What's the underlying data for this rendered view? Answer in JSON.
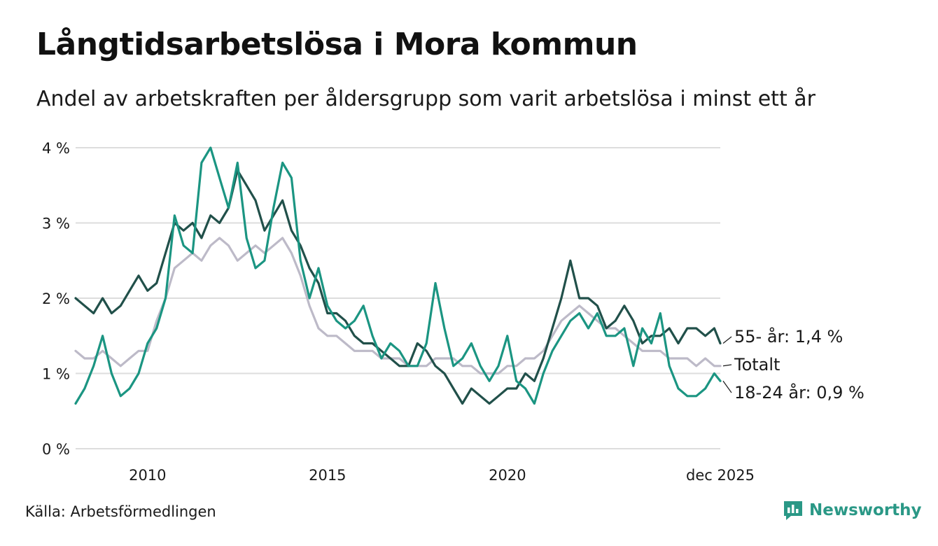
{
  "title": "Långtidsarbetslösa i Mora kommun",
  "subtitle": "Andel av arbetskraften per åldersgrupp som varit arbetslösa i minst ett år",
  "source": "Källa: Arbetsförmedlingen",
  "brand": "Newsworthy",
  "colors": {
    "age55": "#21504a",
    "total": "#bdbac8",
    "age1824": "#1b9582",
    "grid": "#dddddd",
    "brand": "#2a9886"
  },
  "chart_data": {
    "type": "line",
    "title": "Långtidsarbetslösa i Mora kommun",
    "xlabel": "",
    "ylabel": "",
    "ylim": [
      0,
      4
    ],
    "xlim": [
      2008.0,
      2025.917
    ],
    "yticks": [
      0,
      1,
      2,
      3,
      4
    ],
    "ytick_labels": [
      "0 %",
      "1 %",
      "2 %",
      "3 %",
      "4 %"
    ],
    "xticks": [
      2010,
      2015,
      2020,
      2025.917
    ],
    "xtick_labels": [
      "2010",
      "2015",
      "2020",
      "dec 2025"
    ],
    "grid": true,
    "series": [
      {
        "name": "Totalt",
        "end_label": "Totalt",
        "color": "#bdbac8",
        "points": [
          [
            2008.0,
            1.3
          ],
          [
            2008.25,
            1.2
          ],
          [
            2008.5,
            1.2
          ],
          [
            2008.75,
            1.3
          ],
          [
            2009.0,
            1.2
          ],
          [
            2009.25,
            1.1
          ],
          [
            2009.5,
            1.2
          ],
          [
            2009.75,
            1.3
          ],
          [
            2010.0,
            1.3
          ],
          [
            2010.25,
            1.7
          ],
          [
            2010.5,
            2.0
          ],
          [
            2010.75,
            2.4
          ],
          [
            2011.0,
            2.5
          ],
          [
            2011.25,
            2.6
          ],
          [
            2011.5,
            2.5
          ],
          [
            2011.75,
            2.7
          ],
          [
            2012.0,
            2.8
          ],
          [
            2012.25,
            2.7
          ],
          [
            2012.5,
            2.5
          ],
          [
            2012.75,
            2.6
          ],
          [
            2013.0,
            2.7
          ],
          [
            2013.25,
            2.6
          ],
          [
            2013.5,
            2.7
          ],
          [
            2013.75,
            2.8
          ],
          [
            2014.0,
            2.6
          ],
          [
            2014.25,
            2.3
          ],
          [
            2014.5,
            1.9
          ],
          [
            2014.75,
            1.6
          ],
          [
            2015.0,
            1.5
          ],
          [
            2015.25,
            1.5
          ],
          [
            2015.5,
            1.4
          ],
          [
            2015.75,
            1.3
          ],
          [
            2016.0,
            1.3
          ],
          [
            2016.25,
            1.3
          ],
          [
            2016.5,
            1.2
          ],
          [
            2016.75,
            1.2
          ],
          [
            2017.0,
            1.2
          ],
          [
            2017.25,
            1.1
          ],
          [
            2017.5,
            1.1
          ],
          [
            2017.75,
            1.1
          ],
          [
            2018.0,
            1.2
          ],
          [
            2018.25,
            1.2
          ],
          [
            2018.5,
            1.2
          ],
          [
            2018.75,
            1.1
          ],
          [
            2019.0,
            1.1
          ],
          [
            2019.25,
            1.0
          ],
          [
            2019.5,
            1.0
          ],
          [
            2019.75,
            1.0
          ],
          [
            2020.0,
            1.1
          ],
          [
            2020.25,
            1.1
          ],
          [
            2020.5,
            1.2
          ],
          [
            2020.75,
            1.2
          ],
          [
            2021.0,
            1.3
          ],
          [
            2021.25,
            1.5
          ],
          [
            2021.5,
            1.7
          ],
          [
            2021.75,
            1.8
          ],
          [
            2022.0,
            1.9
          ],
          [
            2022.25,
            1.8
          ],
          [
            2022.5,
            1.7
          ],
          [
            2022.75,
            1.6
          ],
          [
            2023.0,
            1.6
          ],
          [
            2023.25,
            1.5
          ],
          [
            2023.5,
            1.4
          ],
          [
            2023.75,
            1.3
          ],
          [
            2024.0,
            1.3
          ],
          [
            2024.25,
            1.3
          ],
          [
            2024.5,
            1.2
          ],
          [
            2024.75,
            1.2
          ],
          [
            2025.0,
            1.2
          ],
          [
            2025.25,
            1.1
          ],
          [
            2025.5,
            1.2
          ],
          [
            2025.75,
            1.1
          ],
          [
            2025.917,
            1.1
          ]
        ]
      },
      {
        "name": "55- år",
        "end_label": "55- år: 1,4 %",
        "color": "#21504a",
        "points": [
          [
            2008.0,
            2.0
          ],
          [
            2008.25,
            1.9
          ],
          [
            2008.5,
            1.8
          ],
          [
            2008.75,
            2.0
          ],
          [
            2009.0,
            1.8
          ],
          [
            2009.25,
            1.9
          ],
          [
            2009.5,
            2.1
          ],
          [
            2009.75,
            2.3
          ],
          [
            2010.0,
            2.1
          ],
          [
            2010.25,
            2.2
          ],
          [
            2010.5,
            2.6
          ],
          [
            2010.75,
            3.0
          ],
          [
            2011.0,
            2.9
          ],
          [
            2011.25,
            3.0
          ],
          [
            2011.5,
            2.8
          ],
          [
            2011.75,
            3.1
          ],
          [
            2012.0,
            3.0
          ],
          [
            2012.25,
            3.2
          ],
          [
            2012.5,
            3.7
          ],
          [
            2012.75,
            3.5
          ],
          [
            2013.0,
            3.3
          ],
          [
            2013.25,
            2.9
          ],
          [
            2013.5,
            3.1
          ],
          [
            2013.75,
            3.3
          ],
          [
            2014.0,
            2.9
          ],
          [
            2014.25,
            2.7
          ],
          [
            2014.5,
            2.4
          ],
          [
            2014.75,
            2.2
          ],
          [
            2015.0,
            1.8
          ],
          [
            2015.25,
            1.8
          ],
          [
            2015.5,
            1.7
          ],
          [
            2015.75,
            1.5
          ],
          [
            2016.0,
            1.4
          ],
          [
            2016.25,
            1.4
          ],
          [
            2016.5,
            1.3
          ],
          [
            2016.75,
            1.2
          ],
          [
            2017.0,
            1.1
          ],
          [
            2017.25,
            1.1
          ],
          [
            2017.5,
            1.4
          ],
          [
            2017.75,
            1.3
          ],
          [
            2018.0,
            1.1
          ],
          [
            2018.25,
            1.0
          ],
          [
            2018.5,
            0.8
          ],
          [
            2018.75,
            0.6
          ],
          [
            2019.0,
            0.8
          ],
          [
            2019.25,
            0.7
          ],
          [
            2019.5,
            0.6
          ],
          [
            2019.75,
            0.7
          ],
          [
            2020.0,
            0.8
          ],
          [
            2020.25,
            0.8
          ],
          [
            2020.5,
            1.0
          ],
          [
            2020.75,
            0.9
          ],
          [
            2021.0,
            1.2
          ],
          [
            2021.25,
            1.6
          ],
          [
            2021.5,
            2.0
          ],
          [
            2021.75,
            2.5
          ],
          [
            2022.0,
            2.0
          ],
          [
            2022.25,
            2.0
          ],
          [
            2022.5,
            1.9
          ],
          [
            2022.75,
            1.6
          ],
          [
            2023.0,
            1.7
          ],
          [
            2023.25,
            1.9
          ],
          [
            2023.5,
            1.7
          ],
          [
            2023.75,
            1.4
          ],
          [
            2024.0,
            1.5
          ],
          [
            2024.25,
            1.5
          ],
          [
            2024.5,
            1.6
          ],
          [
            2024.75,
            1.4
          ],
          [
            2025.0,
            1.6
          ],
          [
            2025.25,
            1.6
          ],
          [
            2025.5,
            1.5
          ],
          [
            2025.75,
            1.6
          ],
          [
            2025.917,
            1.4
          ]
        ]
      },
      {
        "name": "18-24 år",
        "end_label": "18-24 år: 0,9 %",
        "color": "#1b9582",
        "points": [
          [
            2008.0,
            0.6
          ],
          [
            2008.25,
            0.8
          ],
          [
            2008.5,
            1.1
          ],
          [
            2008.75,
            1.5
          ],
          [
            2009.0,
            1.0
          ],
          [
            2009.25,
            0.7
          ],
          [
            2009.5,
            0.8
          ],
          [
            2009.75,
            1.0
          ],
          [
            2010.0,
            1.4
          ],
          [
            2010.25,
            1.6
          ],
          [
            2010.5,
            2.0
          ],
          [
            2010.75,
            3.1
          ],
          [
            2011.0,
            2.7
          ],
          [
            2011.25,
            2.6
          ],
          [
            2011.5,
            3.8
          ],
          [
            2011.75,
            4.0
          ],
          [
            2012.0,
            3.6
          ],
          [
            2012.25,
            3.2
          ],
          [
            2012.5,
            3.8
          ],
          [
            2012.75,
            2.8
          ],
          [
            2013.0,
            2.4
          ],
          [
            2013.25,
            2.5
          ],
          [
            2013.5,
            3.2
          ],
          [
            2013.75,
            3.8
          ],
          [
            2014.0,
            3.6
          ],
          [
            2014.25,
            2.5
          ],
          [
            2014.5,
            2.0
          ],
          [
            2014.75,
            2.4
          ],
          [
            2015.0,
            1.9
          ],
          [
            2015.25,
            1.7
          ],
          [
            2015.5,
            1.6
          ],
          [
            2015.75,
            1.7
          ],
          [
            2016.0,
            1.9
          ],
          [
            2016.25,
            1.5
          ],
          [
            2016.5,
            1.2
          ],
          [
            2016.75,
            1.4
          ],
          [
            2017.0,
            1.3
          ],
          [
            2017.25,
            1.1
          ],
          [
            2017.5,
            1.1
          ],
          [
            2017.75,
            1.4
          ],
          [
            2018.0,
            2.2
          ],
          [
            2018.25,
            1.6
          ],
          [
            2018.5,
            1.1
          ],
          [
            2018.75,
            1.2
          ],
          [
            2019.0,
            1.4
          ],
          [
            2019.25,
            1.1
          ],
          [
            2019.5,
            0.9
          ],
          [
            2019.75,
            1.1
          ],
          [
            2020.0,
            1.5
          ],
          [
            2020.25,
            0.9
          ],
          [
            2020.5,
            0.8
          ],
          [
            2020.75,
            0.6
          ],
          [
            2021.0,
            1.0
          ],
          [
            2021.25,
            1.3
          ],
          [
            2021.5,
            1.5
          ],
          [
            2021.75,
            1.7
          ],
          [
            2022.0,
            1.8
          ],
          [
            2022.25,
            1.6
          ],
          [
            2022.5,
            1.8
          ],
          [
            2022.75,
            1.5
          ],
          [
            2023.0,
            1.5
          ],
          [
            2023.25,
            1.6
          ],
          [
            2023.5,
            1.1
          ],
          [
            2023.75,
            1.6
          ],
          [
            2024.0,
            1.4
          ],
          [
            2024.25,
            1.8
          ],
          [
            2024.5,
            1.1
          ],
          [
            2024.75,
            0.8
          ],
          [
            2025.0,
            0.7
          ],
          [
            2025.25,
            0.7
          ],
          [
            2025.5,
            0.8
          ],
          [
            2025.75,
            1.0
          ],
          [
            2025.917,
            0.9
          ]
        ]
      }
    ]
  }
}
